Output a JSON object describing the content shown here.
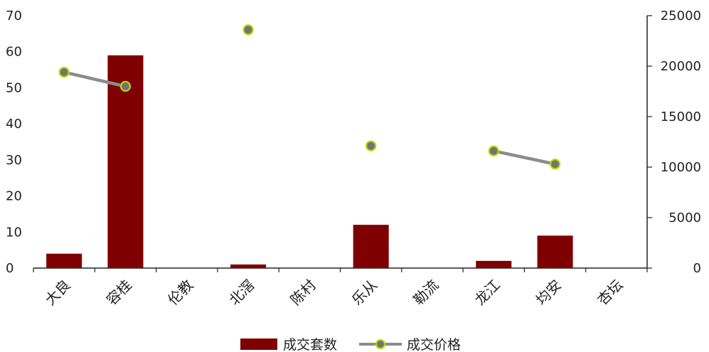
{
  "chart_data": {
    "type": "bar",
    "categories": [
      "大良",
      "容桂",
      "伦教",
      "北滘",
      "陈村",
      "乐从",
      "勒流",
      "龙江",
      "均安",
      "杏坛"
    ],
    "series": [
      {
        "name": "成交套数",
        "type": "bar",
        "axis": "left",
        "values": [
          4,
          59,
          0,
          1,
          0,
          12,
          0,
          2,
          9,
          0
        ],
        "color": "#7f0000"
      },
      {
        "name": "成交价格",
        "type": "line",
        "axis": "right",
        "values": [
          19400,
          18000,
          null,
          23600,
          null,
          12100,
          null,
          11600,
          10300,
          null
        ],
        "color": "#8c8c8c",
        "marker_fill": "#737373",
        "marker_edge": "#b5d900"
      }
    ],
    "y_left": {
      "min": 0,
      "max": 70,
      "ticks": [
        0,
        10,
        20,
        30,
        40,
        50,
        60,
        70
      ]
    },
    "y_right": {
      "min": 0,
      "max": 25000,
      "ticks": [
        0,
        5000,
        10000,
        15000,
        20000,
        25000
      ]
    },
    "grid": false,
    "legend_position": "bottom"
  }
}
